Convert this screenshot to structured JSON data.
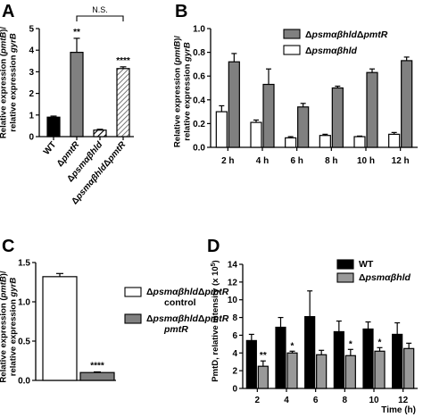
{
  "panel_letters": [
    "A",
    "B",
    "C",
    "D"
  ],
  "chart_data": [
    {
      "id": "A",
      "type": "bar",
      "categories": [
        "WT",
        "ΔpmtR",
        "Δpsmαβhld",
        "Δpsmαβhld ΔpmtR"
      ],
      "category_labels": [
        [
          {
            "t": "WT",
            "i": false
          }
        ],
        [
          {
            "t": "Δ",
            "i": false
          },
          {
            "t": "pmtR",
            "i": true
          }
        ],
        [
          {
            "t": "Δ",
            "i": false
          },
          {
            "t": "psmαβhld",
            "i": true
          }
        ],
        [
          {
            "t": "Δ",
            "i": false
          },
          {
            "t": "psmαβhld",
            "i": true
          },
          {
            "t": "Δ",
            "i": false
          },
          {
            "t": "pmtR",
            "i": true
          }
        ]
      ],
      "values": [
        0.9,
        3.9,
        0.3,
        3.15
      ],
      "errors": [
        0.05,
        0.65,
        0.04,
        0.08
      ],
      "fills": [
        "black",
        "grey",
        "hatch",
        "hatch-dense"
      ],
      "significance": [
        "",
        "**",
        "",
        "****"
      ],
      "bracket_label": "N.S.",
      "ylabel_lines": [
        [
          {
            "t": "Relative expression (",
            "i": false
          },
          {
            "t": "pmtB",
            "i": true
          },
          {
            "t": ")/",
            "i": false
          }
        ],
        [
          {
            "t": "relative expression ",
            "i": false
          },
          {
            "t": "gyrB",
            "i": true
          }
        ]
      ],
      "ylim": [
        0,
        5
      ],
      "yticks": [
        0,
        1,
        2,
        3,
        4,
        5
      ]
    },
    {
      "id": "B",
      "type": "bar",
      "categories": [
        "2 h",
        "4 h",
        "6 h",
        "8 h",
        "10 h",
        "12 h"
      ],
      "series": [
        {
          "name": "Δpsmαβhld",
          "name_parts": [
            {
              "t": "Δ",
              "i": false
            },
            {
              "t": "psmαβhld",
              "i": true
            }
          ],
          "fill": "#ffffff",
          "values": [
            0.3,
            0.21,
            0.08,
            0.1,
            0.09,
            0.11
          ],
          "errors": [
            0.05,
            0.02,
            0.01,
            0.01,
            0.005,
            0.015
          ]
        },
        {
          "name": "ΔpsmαβhldΔpmtR",
          "name_parts": [
            {
              "t": "Δ",
              "i": false
            },
            {
              "t": "psmαβhld",
              "i": true
            },
            {
              "t": "Δ",
              "i": false
            },
            {
              "t": "pmtR",
              "i": true
            }
          ],
          "fill": "#808080",
          "values": [
            0.72,
            0.53,
            0.34,
            0.5,
            0.63,
            0.73
          ],
          "errors": [
            0.07,
            0.13,
            0.03,
            0.015,
            0.03,
            0.03
          ]
        }
      ],
      "legend_order": [
        1,
        0
      ],
      "legend_position": "top-right",
      "ylabel_lines": [
        [
          {
            "t": "Relative expression (",
            "i": false
          },
          {
            "t": "pmtB",
            "i": true
          },
          {
            "t": ")/",
            "i": false
          }
        ],
        [
          {
            "t": "relative expression ",
            "i": false
          },
          {
            "t": "gyrB",
            "i": true
          }
        ]
      ],
      "ylim": [
        0,
        1.0
      ],
      "yticks": [
        0.0,
        0.2,
        0.4,
        0.6,
        0.8,
        1.0
      ]
    },
    {
      "id": "C",
      "type": "bar",
      "categories": [
        "ΔpsmαβhldΔpmtR control",
        "ΔpsmαβhldΔpmtR pmtR"
      ],
      "values": [
        1.32,
        0.1
      ],
      "errors": [
        0.04,
        0.008
      ],
      "fills": [
        "#ffffff",
        "#808080"
      ],
      "significance": [
        "",
        "****"
      ],
      "legend": [
        {
          "lines": [
            [
              {
                "t": "Δ",
                "i": false
              },
              {
                "t": "psmαβhld",
                "i": true
              },
              {
                "t": "Δ",
                "i": false
              },
              {
                "t": "pmtR",
                "i": true
              }
            ],
            [
              {
                "t": "control",
                "i": false
              }
            ]
          ]
        },
        {
          "lines": [
            [
              {
                "t": "Δ",
                "i": false
              },
              {
                "t": "psmαβhld",
                "i": true
              },
              {
                "t": "Δ",
                "i": false
              },
              {
                "t": "pmtR",
                "i": true
              }
            ],
            [
              {
                "t": "pmtR",
                "i": true
              }
            ]
          ]
        }
      ],
      "legend_position": "right",
      "ylabel_lines": [
        [
          {
            "t": "Relative expression (",
            "i": false
          },
          {
            "t": "pmtB",
            "i": true
          },
          {
            "t": ")/",
            "i": false
          }
        ],
        [
          {
            "t": "relative expression ",
            "i": false
          },
          {
            "t": "gyrB",
            "i": true
          }
        ]
      ],
      "ylim": [
        0,
        1.5
      ],
      "yticks": [
        0.0,
        0.5,
        1.0,
        1.5
      ]
    },
    {
      "id": "D",
      "type": "bar",
      "categories": [
        "2",
        "4",
        "6",
        "8",
        "10",
        "12"
      ],
      "series": [
        {
          "name": "WT",
          "name_parts": [
            {
              "t": "WT",
              "i": false
            }
          ],
          "fill": "#000000",
          "values": [
            5.4,
            6.9,
            8.1,
            6.4,
            6.7,
            6.1
          ],
          "errors": [
            0.7,
            1.1,
            2.9,
            1.2,
            0.8,
            1.3
          ]
        },
        {
          "name": "Δpsmαβhld",
          "name_parts": [
            {
              "t": "Δ",
              "i": false
            },
            {
              "t": "psmαβhld",
              "i": true
            }
          ],
          "fill": "#999999",
          "values": [
            2.5,
            4.0,
            3.8,
            3.7,
            4.2,
            4.5
          ],
          "errors": [
            0.6,
            0.2,
            0.5,
            0.7,
            0.4,
            0.6
          ]
        }
      ],
      "significance": [
        "**",
        "*",
        "",
        "*",
        "*",
        ""
      ],
      "legend_order": [
        0,
        1
      ],
      "legend_position": "top-right",
      "ylabel_lines": [
        [
          {
            "t": "PmtD, relative intensity (x 10",
            "i": false
          },
          {
            "t": "5",
            "i": false,
            "sup": true
          },
          {
            "t": ")",
            "i": false
          }
        ]
      ],
      "xlabel": "Time (h)",
      "ylim": [
        0,
        14
      ],
      "yticks": [
        0,
        2,
        4,
        6,
        8,
        10,
        12,
        14
      ]
    }
  ]
}
